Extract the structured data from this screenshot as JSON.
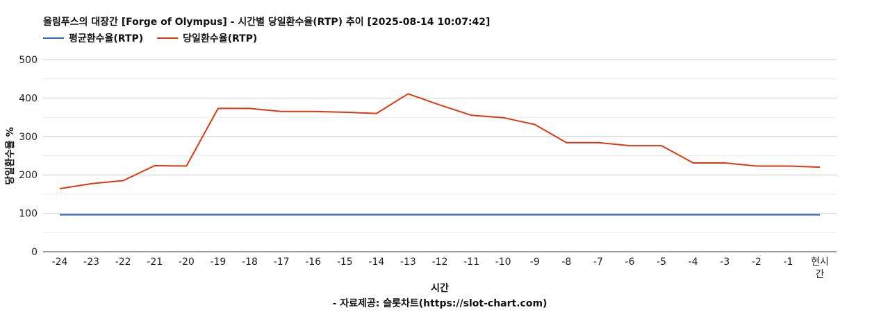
{
  "chart_data": {
    "type": "line",
    "title": "올림푸스의 대장간 [Forge of Olympus] - 시간별 당일환수율(RTP) 추이 [2025-08-14 10:07:42]",
    "xlabel": "시간",
    "ylabel": "당일환수율 %",
    "credit": "- 자료제공: 슬롯차트(https://slot-chart.com)",
    "categories": [
      "-24",
      "-23",
      "-22",
      "-21",
      "-20",
      "-19",
      "-18",
      "-17",
      "-16",
      "-15",
      "-14",
      "-13",
      "-12",
      "-11",
      "-10",
      "-9",
      "-8",
      "-7",
      "-6",
      "-5",
      "-4",
      "-3",
      "-2",
      "-1",
      "현시간"
    ],
    "ylim": [
      0,
      500
    ],
    "yticks": [
      0,
      100,
      200,
      300,
      400,
      500
    ],
    "grid": true,
    "legend_position": "top-left",
    "series": [
      {
        "name": "평균환수율(RTP)",
        "color": "#3366cc",
        "values": [
          96,
          96,
          96,
          96,
          96,
          96,
          96,
          96,
          96,
          96,
          96,
          96,
          96,
          96,
          96,
          96,
          96,
          96,
          96,
          96,
          96,
          96,
          96,
          96,
          96
        ]
      },
      {
        "name": "당일환수율(RTP)",
        "color": "#dc3912",
        "values": [
          164,
          177,
          185,
          224,
          223,
          373,
          373,
          365,
          365,
          363,
          360,
          411,
          382,
          355,
          349,
          331,
          284,
          284,
          276,
          276,
          231,
          231,
          223,
          223,
          220
        ]
      }
    ]
  }
}
